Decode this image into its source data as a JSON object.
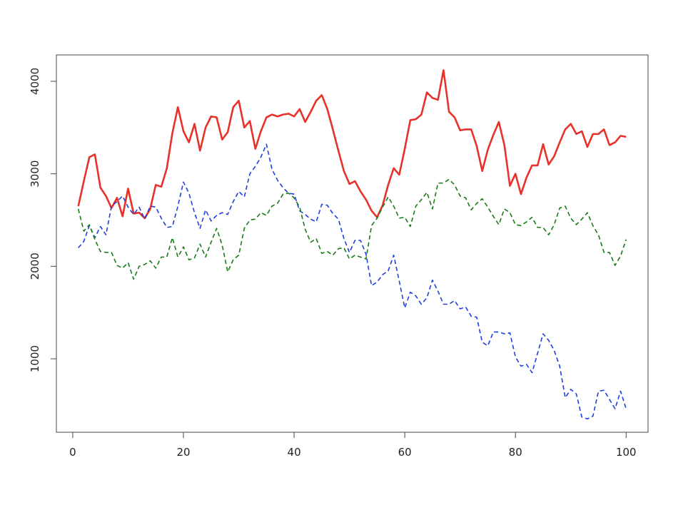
{
  "chart_data": {
    "type": "line",
    "x": [
      1,
      2,
      3,
      4,
      5,
      6,
      7,
      8,
      9,
      10,
      11,
      12,
      13,
      14,
      15,
      16,
      17,
      18,
      19,
      20,
      21,
      22,
      23,
      24,
      25,
      26,
      27,
      28,
      29,
      30,
      31,
      32,
      33,
      34,
      35,
      36,
      37,
      38,
      39,
      40,
      41,
      42,
      43,
      44,
      45,
      46,
      47,
      48,
      49,
      50,
      51,
      52,
      53,
      54,
      55,
      56,
      57,
      58,
      59,
      60,
      61,
      62,
      63,
      64,
      65,
      66,
      67,
      68,
      69,
      70,
      71,
      72,
      73,
      74,
      75,
      76,
      77,
      78,
      79,
      80,
      81,
      82,
      83,
      84,
      85,
      86,
      87,
      88,
      89,
      90,
      91,
      92,
      93,
      94,
      95,
      96,
      97,
      98,
      99,
      100
    ],
    "series": [
      {
        "color": "#e8312a",
        "dash": "solid",
        "values": [
          2650,
          2920,
          3180,
          3210,
          2850,
          2760,
          2630,
          2740,
          2540,
          2840,
          2570,
          2580,
          2520,
          2620,
          2880,
          2860,
          3060,
          3440,
          3720,
          3460,
          3340,
          3540,
          3250,
          3500,
          3620,
          3610,
          3370,
          3450,
          3720,
          3790,
          3500,
          3570,
          3270,
          3460,
          3610,
          3640,
          3620,
          3640,
          3650,
          3620,
          3700,
          3560,
          3670,
          3790,
          3850,
          3700,
          3480,
          3250,
          3030,
          2890,
          2920,
          2810,
          2720,
          2600,
          2530,
          2660,
          2880,
          3060,
          2990,
          3270,
          3580,
          3590,
          3640,
          3880,
          3820,
          3800,
          4120,
          3670,
          3610,
          3470,
          3480,
          3480,
          3300,
          3030,
          3260,
          3420,
          3560,
          3310,
          2870,
          3000,
          2780,
          2960,
          3090,
          3090,
          3320,
          3100,
          3190,
          3340,
          3480,
          3540,
          3430,
          3460,
          3290,
          3430,
          3430,
          3480,
          3310,
          3340,
          3410,
          3400
        ]
      },
      {
        "color": "#1f3fe0",
        "dash": "dashed",
        "values": [
          2200,
          2270,
          2440,
          2310,
          2430,
          2340,
          2650,
          2700,
          2760,
          2640,
          2560,
          2640,
          2510,
          2650,
          2640,
          2520,
          2420,
          2430,
          2650,
          2910,
          2790,
          2580,
          2410,
          2610,
          2490,
          2550,
          2580,
          2560,
          2700,
          2810,
          2750,
          3000,
          3080,
          3180,
          3320,
          3050,
          2930,
          2850,
          2790,
          2780,
          2600,
          2560,
          2510,
          2480,
          2670,
          2660,
          2570,
          2510,
          2300,
          2150,
          2280,
          2280,
          2130,
          1790,
          1830,
          1910,
          1950,
          2120,
          1840,
          1550,
          1720,
          1680,
          1590,
          1660,
          1850,
          1730,
          1590,
          1590,
          1630,
          1540,
          1560,
          1460,
          1450,
          1180,
          1140,
          1290,
          1290,
          1270,
          1280,
          1020,
          920,
          940,
          850,
          1060,
          1270,
          1200,
          1090,
          920,
          580,
          670,
          620,
          370,
          350,
          380,
          650,
          660,
          560,
          460,
          650,
          460
        ]
      },
      {
        "color": "#1a7a1a",
        "dash": "dashed",
        "values": [
          2620,
          2380,
          2450,
          2290,
          2160,
          2150,
          2150,
          2010,
          1980,
          2040,
          1860,
          2000,
          2020,
          2060,
          1980,
          2100,
          2100,
          2310,
          2100,
          2210,
          2070,
          2090,
          2240,
          2100,
          2260,
          2410,
          2230,
          1940,
          2070,
          2120,
          2410,
          2500,
          2510,
          2580,
          2550,
          2650,
          2680,
          2780,
          2790,
          2740,
          2640,
          2400,
          2260,
          2300,
          2140,
          2160,
          2120,
          2190,
          2200,
          2080,
          2120,
          2100,
          2080,
          2440,
          2520,
          2640,
          2750,
          2650,
          2520,
          2530,
          2430,
          2650,
          2720,
          2800,
          2620,
          2900,
          2900,
          2940,
          2880,
          2760,
          2740,
          2610,
          2680,
          2730,
          2640,
          2540,
          2450,
          2620,
          2580,
          2450,
          2440,
          2480,
          2530,
          2420,
          2420,
          2340,
          2450,
          2630,
          2650,
          2520,
          2450,
          2510,
          2580,
          2440,
          2340,
          2150,
          2150,
          2010,
          2110,
          2290
        ]
      }
    ],
    "xlim": [
      -2.96,
      103.96
    ],
    "ylim": [
      206,
      4285
    ],
    "xticks": [
      0,
      20,
      40,
      60,
      80,
      100
    ],
    "yticks": [
      1000,
      2000,
      3000,
      4000
    ]
  }
}
